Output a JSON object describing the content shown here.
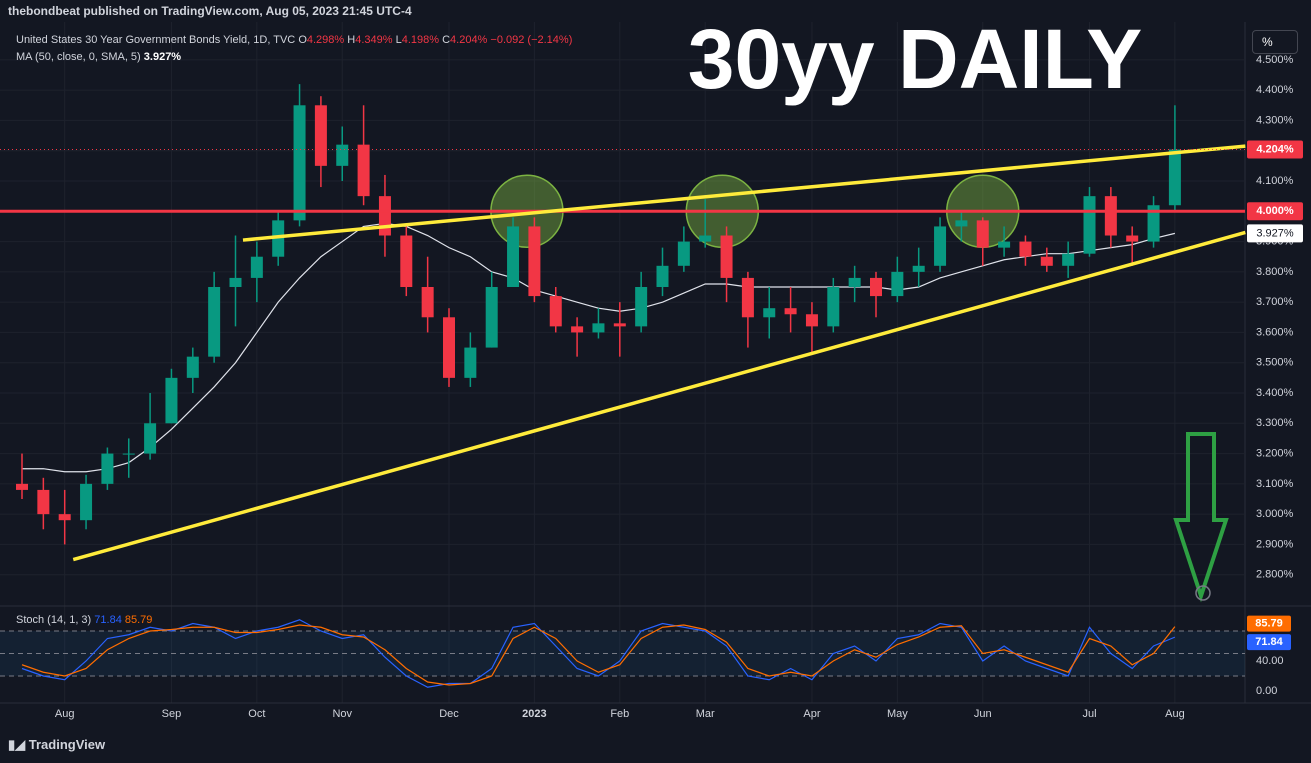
{
  "header": {
    "publisher": "thebondbeat published on TradingView.com, Aug 05, 2023 21:45 UTC-4"
  },
  "footer": {
    "brand": "TradingView"
  },
  "unit_button": "%",
  "chart_data": [
    {
      "type": "candlestick",
      "title": "30yy DAILY",
      "legend": {
        "symbol": "United States 30 Year Government Bonds Yield, 1D, TVC",
        "ohlc": [
          {
            "label": "O",
            "value": "4.298%"
          },
          {
            "label": "H",
            "value": "4.349%"
          },
          {
            "label": "L",
            "value": "4.198%"
          },
          {
            "label": "C",
            "value": "4.204%"
          }
        ],
        "change": "−0.092 (−2.14%)"
      },
      "categories": [
        null,
        null,
        "Aug",
        null,
        null,
        null,
        null,
        "Sep",
        null,
        null,
        null,
        "Oct",
        null,
        null,
        null,
        "Nov",
        null,
        null,
        null,
        null,
        "Dec",
        null,
        null,
        null,
        "2023",
        null,
        null,
        null,
        "Feb",
        null,
        null,
        null,
        "Mar",
        null,
        null,
        null,
        null,
        "Apr",
        null,
        null,
        null,
        "May",
        null,
        null,
        null,
        "Jun",
        null,
        null,
        null,
        null,
        "Jul",
        null,
        null,
        null,
        "Aug"
      ],
      "open": [
        3.1,
        3.08,
        3.0,
        2.98,
        3.1,
        3.2,
        3.2,
        3.3,
        3.45,
        3.52,
        3.75,
        3.78,
        3.85,
        3.97,
        4.35,
        4.15,
        4.22,
        4.05,
        3.92,
        3.75,
        3.65,
        3.45,
        3.55,
        3.75,
        3.95,
        3.72,
        3.62,
        3.6,
        3.63,
        3.62,
        3.75,
        3.82,
        3.9,
        3.92,
        3.78,
        3.65,
        3.68,
        3.66,
        3.62,
        3.75,
        3.78,
        3.72,
        3.8,
        3.82,
        3.95,
        3.97,
        3.88,
        3.9,
        3.85,
        3.82,
        3.86,
        4.05,
        3.92,
        3.9,
        4.02
      ],
      "high": [
        3.2,
        3.12,
        3.08,
        3.13,
        3.22,
        3.25,
        3.4,
        3.48,
        3.55,
        3.8,
        3.92,
        3.9,
        4.0,
        4.42,
        4.38,
        4.28,
        4.35,
        4.12,
        3.95,
        3.85,
        3.68,
        3.6,
        3.8,
        3.98,
        3.98,
        3.75,
        3.65,
        3.68,
        3.7,
        3.8,
        3.88,
        3.95,
        4.04,
        3.95,
        3.8,
        3.75,
        3.75,
        3.7,
        3.78,
        3.82,
        3.8,
        3.85,
        3.88,
        3.98,
        4.0,
        3.98,
        3.95,
        3.92,
        3.88,
        3.9,
        4.08,
        4.08,
        3.95,
        4.05,
        4.35
      ],
      "low": [
        3.05,
        2.95,
        2.9,
        2.95,
        3.08,
        3.12,
        3.18,
        3.3,
        3.4,
        3.5,
        3.62,
        3.7,
        3.82,
        3.95,
        4.08,
        4.1,
        4.02,
        3.85,
        3.72,
        3.6,
        3.42,
        3.42,
        3.55,
        3.75,
        3.7,
        3.6,
        3.52,
        3.58,
        3.52,
        3.6,
        3.72,
        3.8,
        3.88,
        3.7,
        3.55,
        3.58,
        3.6,
        3.53,
        3.6,
        3.7,
        3.65,
        3.7,
        3.75,
        3.8,
        3.9,
        3.82,
        3.85,
        3.82,
        3.8,
        3.78,
        3.85,
        3.88,
        3.82,
        3.88,
        4.0
      ],
      "close": [
        3.08,
        3.0,
        2.98,
        3.1,
        3.2,
        3.2,
        3.3,
        3.45,
        3.52,
        3.75,
        3.78,
        3.85,
        3.97,
        4.35,
        4.15,
        4.22,
        4.05,
        3.92,
        3.75,
        3.65,
        3.45,
        3.55,
        3.75,
        3.95,
        3.72,
        3.62,
        3.6,
        3.63,
        3.62,
        3.75,
        3.82,
        3.9,
        3.92,
        3.78,
        3.65,
        3.68,
        3.66,
        3.62,
        3.75,
        3.78,
        3.72,
        3.8,
        3.82,
        3.95,
        3.97,
        3.88,
        3.9,
        3.85,
        3.82,
        3.86,
        4.05,
        3.92,
        3.9,
        4.02,
        4.204
      ],
      "up_color": "#089981",
      "down_color": "#f23645",
      "price_label": "4.204%",
      "series": [
        {
          "name": "MA (50, close, 0, SMA, 5)",
          "color": "#e0e3eb",
          "last_value_label": "3.927%",
          "values": [
            3.15,
            3.15,
            3.14,
            3.14,
            3.15,
            3.17,
            3.22,
            3.28,
            3.35,
            3.42,
            3.5,
            3.6,
            3.7,
            3.78,
            3.85,
            3.9,
            3.95,
            3.96,
            3.95,
            3.92,
            3.88,
            3.85,
            3.8,
            3.78,
            3.74,
            3.72,
            3.7,
            3.68,
            3.67,
            3.68,
            3.7,
            3.73,
            3.76,
            3.76,
            3.75,
            3.75,
            3.75,
            3.75,
            3.75,
            3.75,
            3.75,
            3.74,
            3.75,
            3.78,
            3.8,
            3.82,
            3.84,
            3.85,
            3.86,
            3.86,
            3.87,
            3.88,
            3.89,
            3.91,
            3.927
          ]
        }
      ],
      "hlines": [
        {
          "value": 4.0,
          "label": "4.000%",
          "color": "#f23645"
        }
      ],
      "trendlines": [
        {
          "color": "#ffeb3b",
          "points": [
            [
              2.4,
              2.85
            ],
            [
              57.3,
              3.93
            ]
          ]
        },
        {
          "color": "#ffeb3b",
          "points": [
            [
              10.35,
              3.905
            ],
            [
              57.3,
              4.215
            ]
          ]
        }
      ],
      "highlights": [
        {
          "x": 23.65,
          "y": 4.0
        },
        {
          "x": 32.8,
          "y": 4.0
        },
        {
          "x": 45.0,
          "y": 4.0
        }
      ],
      "highlight_color": "#7cb342",
      "ylim": [
        2.7,
        4.625
      ],
      "yticks": [
        {
          "value": 2.8,
          "label": "2.800%"
        },
        {
          "value": 2.9,
          "label": "2.900%"
        },
        {
          "value": 3.0,
          "label": "3.000%"
        },
        {
          "value": 3.1,
          "label": "3.100%"
        },
        {
          "value": 3.2,
          "label": "3.200%"
        },
        {
          "value": 3.3,
          "label": "3.300%"
        },
        {
          "value": 3.4,
          "label": "3.400%"
        },
        {
          "value": 3.5,
          "label": "3.500%"
        },
        {
          "value": 3.6,
          "label": "3.600%"
        },
        {
          "value": 3.7,
          "label": "3.700%"
        },
        {
          "value": 3.8,
          "label": "3.800%"
        },
        {
          "value": 3.9,
          "label": "3.900%"
        },
        {
          "value": 4.0,
          "label": "4.000%"
        },
        {
          "value": 4.1,
          "label": "4.100%"
        },
        {
          "value": 4.2,
          "label": "4.200%"
        },
        {
          "value": 4.3,
          "label": "4.300%"
        },
        {
          "value": 4.4,
          "label": "4.400%"
        },
        {
          "value": 4.5,
          "label": "4.500%"
        }
      ],
      "grid": true
    },
    {
      "type": "line",
      "title": "Stoch (14, 1, 3)",
      "series": [
        {
          "name": "%K",
          "color": "#2962ff",
          "values": [
            30,
            20,
            15,
            40,
            70,
            75,
            85,
            80,
            90,
            85,
            70,
            80,
            85,
            95,
            80,
            70,
            75,
            45,
            20,
            5,
            10,
            10,
            30,
            85,
            90,
            60,
            30,
            20,
            40,
            80,
            90,
            85,
            80,
            60,
            20,
            15,
            30,
            15,
            50,
            60,
            40,
            70,
            75,
            90,
            85,
            40,
            60,
            40,
            30,
            20,
            85,
            50,
            30,
            60,
            71.84
          ]
        },
        {
          "name": "%D",
          "color": "#ff6d00",
          "values": [
            35,
            25,
            20,
            30,
            55,
            70,
            80,
            82,
            85,
            85,
            78,
            78,
            82,
            88,
            85,
            75,
            72,
            55,
            30,
            12,
            8,
            10,
            20,
            70,
            85,
            70,
            40,
            25,
            35,
            70,
            85,
            88,
            82,
            65,
            30,
            20,
            25,
            20,
            40,
            55,
            45,
            62,
            72,
            85,
            87,
            50,
            55,
            45,
            35,
            25,
            70,
            60,
            35,
            50,
            85.79
          ]
        }
      ],
      "bands": [
        80,
        50,
        20
      ],
      "ylim": [
        -16,
        112
      ],
      "yticks": [
        {
          "value": 0,
          "label": "0.00"
        },
        {
          "value": 40,
          "label": "40.00"
        }
      ]
    }
  ]
}
